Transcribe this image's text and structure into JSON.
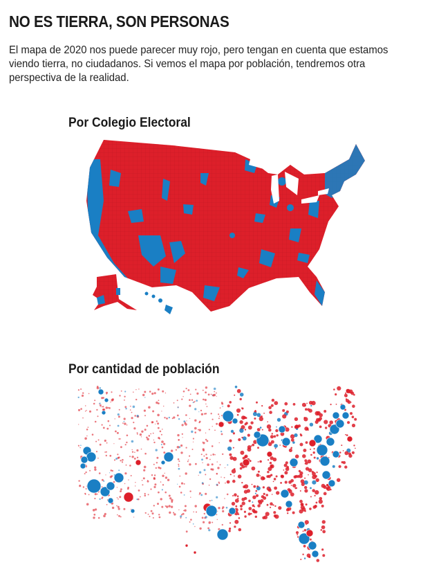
{
  "header": {
    "title": "NO ES TIERRA, SON PERSONAS",
    "subtitle": "El mapa de 2020 nos puede parecer muy rojo, pero tengan en cuenta que estamos viendo tierra, no ciudadanos. Si vemos el mapa por población, tendremos otra perspectiva de la realidad."
  },
  "maps": [
    {
      "title": "Por Colegio Electoral",
      "style": "filled-counties"
    },
    {
      "title": "Por cantidad de población",
      "style": "proportional-circles"
    }
  ],
  "colors": {
    "republican": "#dd1f2a",
    "democrat": "#1a7fc4"
  }
}
